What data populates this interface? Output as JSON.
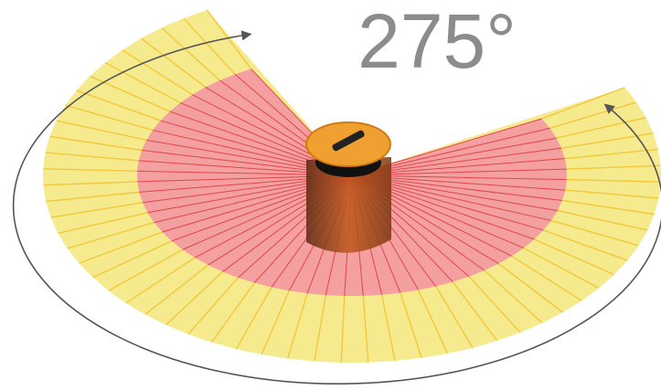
{
  "label": "275°"
}
